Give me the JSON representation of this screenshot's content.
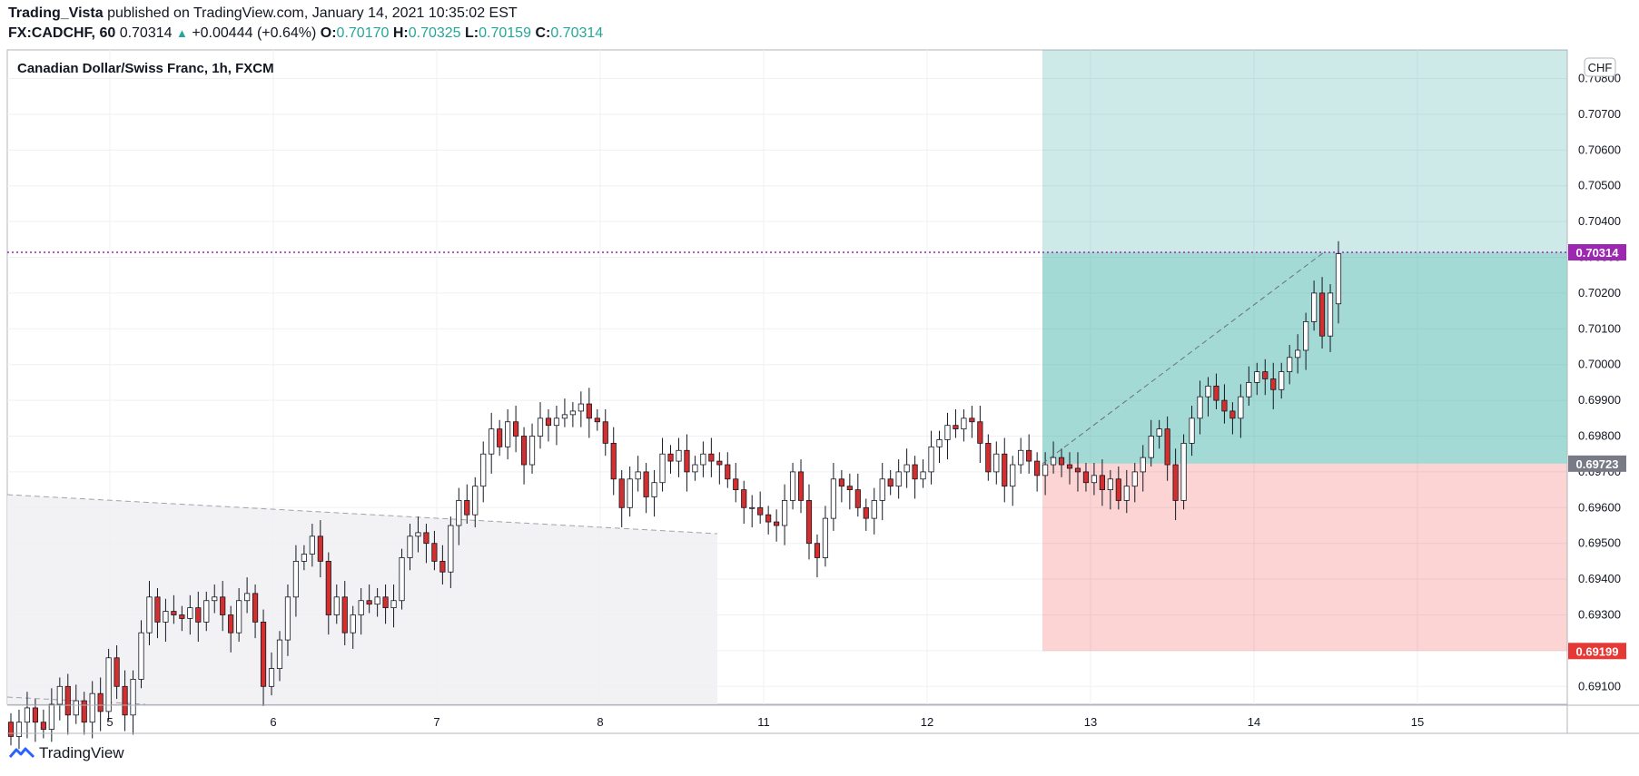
{
  "header": {
    "publisher": "Trading_Vista",
    "published_text": "published on TradingView.com, January 14, 2021 10:35:02 EST",
    "symbol": "FX:CADCHF, 60",
    "last": "0.70314",
    "change": "+0.00444 (+0.64%)",
    "o_label": "O:",
    "o_value": "0.70170",
    "h_label": "H:",
    "h_value": "0.70325",
    "l_label": "L:",
    "l_value": "0.70159",
    "c_label": "C:",
    "c_value": "0.70314"
  },
  "legend": {
    "title": "Canadian Dollar/Swiss Franc, 1h, FXCM"
  },
  "footer": {
    "brand": "TradingView"
  },
  "colors": {
    "up": "#ffffff",
    "down": "#d32f2f",
    "wick": "#131722",
    "profit_zone": "#26a69a",
    "loss_zone": "#ef5350",
    "last_price": "#9c27b0",
    "entry_price": "#787b86",
    "stop_price": "#e53935"
  },
  "chart_data": {
    "type": "candlestick",
    "currency_label": "CHF",
    "ylim": [
      0.6905,
      0.7088
    ],
    "y_ticks": [
      "0.69100",
      "0.69200",
      "0.69300",
      "0.69400",
      "0.69500",
      "0.69600",
      "0.69700",
      "0.69800",
      "0.69900",
      "0.70000",
      "0.70100",
      "0.70200",
      "0.70300",
      "0.70400",
      "0.70500",
      "0.70600",
      "0.70700",
      "0.70800"
    ],
    "x_ticks": [
      "5",
      "6",
      "7",
      "8",
      "11",
      "12",
      "13",
      "14",
      "15"
    ],
    "price_labels": {
      "last": "0.70314",
      "entry": "0.69723",
      "stop": "0.69199"
    },
    "levels": {
      "last": 0.70314,
      "entry": 0.69723,
      "stop": 0.69199,
      "target_top": 0.7088
    },
    "position_start_index": 100,
    "candles_start_index": 0,
    "closes": [
      0.6896,
      0.69,
      0.6904,
      0.69,
      0.6898,
      0.6905,
      0.691,
      0.6902,
      0.6906,
      0.69,
      0.6908,
      0.6903,
      0.6918,
      0.691,
      0.6902,
      0.6912,
      0.6925,
      0.6935,
      0.6928,
      0.6931,
      0.693,
      0.6929,
      0.6932,
      0.6928,
      0.6934,
      0.6935,
      0.693,
      0.6925,
      0.6934,
      0.6936,
      0.6928,
      0.691,
      0.6915,
      0.6923,
      0.6935,
      0.6945,
      0.6947,
      0.6952,
      0.6945,
      0.693,
      0.6935,
      0.6925,
      0.693,
      0.6934,
      0.6933,
      0.6935,
      0.6932,
      0.6934,
      0.6946,
      0.6952,
      0.6953,
      0.695,
      0.6945,
      0.6942,
      0.6955,
      0.6962,
      0.6958,
      0.6966,
      0.6975,
      0.6982,
      0.6977,
      0.6984,
      0.698,
      0.6972,
      0.698,
      0.6985,
      0.6983,
      0.6985,
      0.6986,
      0.6987,
      0.6989,
      0.6985,
      0.6984,
      0.6978,
      0.6968,
      0.696,
      0.6968,
      0.697,
      0.6963,
      0.6967,
      0.6975,
      0.6973,
      0.6976,
      0.697,
      0.6972,
      0.6975,
      0.6973,
      0.6972,
      0.6968,
      0.6965,
      0.696,
      0.696,
      0.6958,
      0.6956,
      0.6955,
      0.6962,
      0.697,
      0.6962,
      0.695,
      0.6946,
      0.6957,
      0.6968,
      0.6966,
      0.6965,
      0.696,
      0.6957,
      0.6962,
      0.6968,
      0.6966,
      0.697,
      0.6972,
      0.6968,
      0.697,
      0.6977,
      0.6979,
      0.6983,
      0.6982,
      0.6985,
      0.6984,
      0.6978,
      0.697,
      0.6975,
      0.6966,
      0.6972,
      0.6976,
      0.6973,
      0.6969,
      0.6972,
      0.6974,
      0.6972,
      0.6971,
      0.697,
      0.6967,
      0.6969,
      0.6965,
      0.6968,
      0.6962,
      0.6966,
      0.697,
      0.6974,
      0.698,
      0.6982,
      0.6972,
      0.6962,
      0.6978,
      0.6985,
      0.6991,
      0.6994,
      0.699,
      0.6987,
      0.6985,
      0.6991,
      0.6995,
      0.6998,
      0.6996,
      0.6993,
      0.6998,
      0.7002,
      0.7004,
      0.7012,
      0.702,
      0.7008,
      0.702,
      0.7031
    ],
    "opens": [
      0.69,
      0.6896,
      0.69,
      0.6904,
      0.69,
      0.6898,
      0.6905,
      0.691,
      0.6902,
      0.6906,
      0.69,
      0.6908,
      0.6903,
      0.6918,
      0.691,
      0.6902,
      0.6912,
      0.6925,
      0.6935,
      0.6928,
      0.6931,
      0.693,
      0.6929,
      0.6932,
      0.6928,
      0.6934,
      0.6935,
      0.693,
      0.6925,
      0.6934,
      0.6936,
      0.6928,
      0.691,
      0.6915,
      0.6923,
      0.6935,
      0.6945,
      0.6947,
      0.6952,
      0.6945,
      0.693,
      0.6935,
      0.6925,
      0.693,
      0.6934,
      0.6933,
      0.6935,
      0.6932,
      0.6934,
      0.6946,
      0.6952,
      0.6953,
      0.695,
      0.6945,
      0.6942,
      0.6955,
      0.6962,
      0.6958,
      0.6966,
      0.6975,
      0.6982,
      0.6977,
      0.6984,
      0.698,
      0.6972,
      0.698,
      0.6985,
      0.6983,
      0.6985,
      0.6986,
      0.6987,
      0.6989,
      0.6985,
      0.6984,
      0.6978,
      0.6968,
      0.696,
      0.6968,
      0.697,
      0.6963,
      0.6967,
      0.6975,
      0.6973,
      0.6976,
      0.697,
      0.6972,
      0.6975,
      0.6973,
      0.6972,
      0.6968,
      0.6965,
      0.696,
      0.696,
      0.6958,
      0.6956,
      0.6955,
      0.6962,
      0.697,
      0.6962,
      0.695,
      0.6946,
      0.6957,
      0.6968,
      0.6966,
      0.6965,
      0.696,
      0.6957,
      0.6962,
      0.6968,
      0.6966,
      0.697,
      0.6972,
      0.6968,
      0.697,
      0.6977,
      0.6979,
      0.6983,
      0.6982,
      0.6985,
      0.6984,
      0.6978,
      0.697,
      0.6975,
      0.6966,
      0.6972,
      0.6976,
      0.6973,
      0.6969,
      0.6972,
      0.6974,
      0.6972,
      0.6971,
      0.697,
      0.6967,
      0.6969,
      0.6965,
      0.6968,
      0.6962,
      0.6966,
      0.697,
      0.6974,
      0.698,
      0.6982,
      0.6972,
      0.6962,
      0.6978,
      0.6985,
      0.6991,
      0.6994,
      0.699,
      0.6987,
      0.6985,
      0.6991,
      0.6995,
      0.6998,
      0.6996,
      0.6993,
      0.6998,
      0.7002,
      0.7004,
      0.7012,
      0.702,
      0.7008,
      0.7017
    ]
  }
}
